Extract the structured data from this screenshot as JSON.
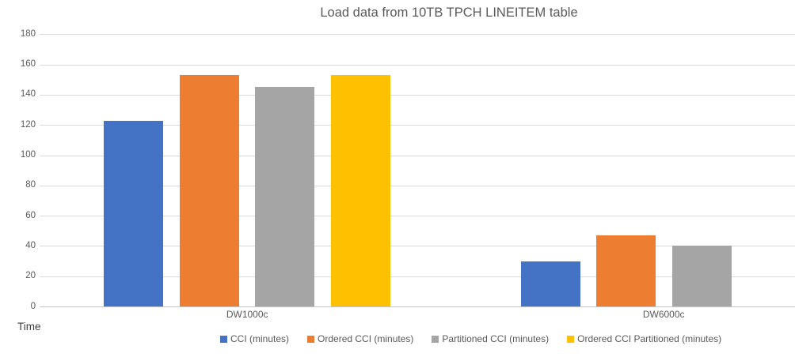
{
  "chart_data": {
    "type": "bar",
    "title": "Load data from 10TB TPCH LINEITEM table",
    "categories": [
      "DW1000c",
      "DW6000c"
    ],
    "series": [
      {
        "name": "CCI (minutes)",
        "color": "#4472C4",
        "values": [
          123,
          30
        ]
      },
      {
        "name": "Ordered CCI (minutes)",
        "color": "#ED7D31",
        "values": [
          153,
          47
        ]
      },
      {
        "name": "Partitioned CCI (minutes)",
        "color": "#A5A5A5",
        "values": [
          145,
          40
        ]
      },
      {
        "name": "Ordered CCI Partitioned (minutes)",
        "color": "#FFC000",
        "values": [
          153,
          null
        ]
      }
    ],
    "xlabel": "",
    "ylabel": "Time",
    "ylim": [
      0,
      180
    ],
    "yticks": [
      0,
      20,
      40,
      60,
      80,
      100,
      120,
      140,
      160,
      180
    ],
    "grid": true,
    "legend_position": "bottom"
  }
}
